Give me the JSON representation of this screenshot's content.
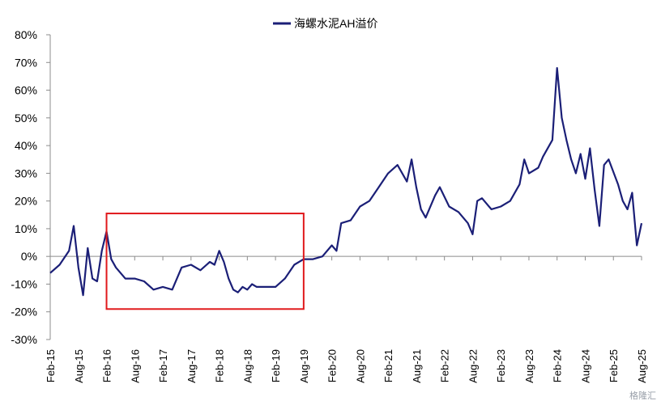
{
  "chart_data": {
    "type": "line",
    "title": "",
    "xlabel": "",
    "ylabel": "",
    "legend": {
      "position": "top-center"
    },
    "ylim": [
      -30,
      80
    ],
    "y_ticks": [
      -30,
      -20,
      -10,
      0,
      10,
      20,
      30,
      40,
      50,
      60,
      70,
      80
    ],
    "y_tick_labels": [
      "-30%",
      "-20%",
      "-10%",
      "0%",
      "10%",
      "20%",
      "30%",
      "40%",
      "50%",
      "60%",
      "70%",
      "80%"
    ],
    "x_ticks": [
      "Feb-15",
      "Aug-15",
      "Feb-16",
      "Aug-16",
      "Feb-17",
      "Aug-17",
      "Feb-18",
      "Aug-18",
      "Feb-19",
      "Aug-19",
      "Feb-20",
      "Aug-20",
      "Feb-21",
      "Aug-21",
      "Feb-22",
      "Aug-22",
      "Feb-23",
      "Aug-23",
      "Feb-24",
      "Aug-24",
      "Feb-25",
      "Aug-25"
    ],
    "grid": false,
    "series": [
      {
        "name": "海螺水泥AH溢价",
        "color": "#1b1f77",
        "x": [
          "2015-02",
          "2015-04",
          "2015-06",
          "2015-07",
          "2015-08",
          "2015-09",
          "2015-10",
          "2015-11",
          "2015-12",
          "2016-01",
          "2016-02",
          "2016-03",
          "2016-04",
          "2016-06",
          "2016-08",
          "2016-10",
          "2016-12",
          "2017-02",
          "2017-04",
          "2017-06",
          "2017-08",
          "2017-10",
          "2017-12",
          "2018-01",
          "2018-02",
          "2018-03",
          "2018-04",
          "2018-05",
          "2018-06",
          "2018-07",
          "2018-08",
          "2018-09",
          "2018-10",
          "2018-12",
          "2019-02",
          "2019-04",
          "2019-06",
          "2019-08",
          "2019-10",
          "2019-12",
          "2020-02",
          "2020-03",
          "2020-04",
          "2020-06",
          "2020-08",
          "2020-10",
          "2020-12",
          "2021-02",
          "2021-04",
          "2021-06",
          "2021-07",
          "2021-08",
          "2021-09",
          "2021-10",
          "2021-12",
          "2022-01",
          "2022-03",
          "2022-05",
          "2022-07",
          "2022-08",
          "2022-09",
          "2022-10",
          "2022-11",
          "2022-12",
          "2023-02",
          "2023-04",
          "2023-06",
          "2023-07",
          "2023-08",
          "2023-10",
          "2023-11",
          "2024-01",
          "2024-02",
          "2024-03",
          "2024-04",
          "2024-05",
          "2024-06",
          "2024-07",
          "2024-08",
          "2024-09",
          "2024-10",
          "2024-11",
          "2024-12",
          "2025-01",
          "2025-03",
          "2025-04",
          "2025-05",
          "2025-06",
          "2025-07",
          "2025-08"
        ],
        "values": [
          -6,
          -3,
          2,
          11,
          -4,
          -14,
          3,
          -8,
          -9,
          2,
          9,
          -1,
          -4,
          -8,
          -8,
          -9,
          -12,
          -11,
          -12,
          -4,
          -3,
          -5,
          -2,
          -3,
          2,
          -2,
          -8,
          -12,
          -13,
          -11,
          -12,
          -10,
          -11,
          -11,
          -11,
          -8,
          -3,
          -1,
          -1,
          0,
          4,
          2,
          12,
          13,
          18,
          20,
          25,
          30,
          33,
          27,
          35,
          25,
          17,
          14,
          22,
          25,
          18,
          16,
          12,
          8,
          20,
          21,
          19,
          17,
          18,
          20,
          26,
          35,
          30,
          32,
          36,
          42,
          68,
          50,
          42,
          35,
          30,
          37,
          28,
          39,
          24,
          11,
          33,
          35,
          26,
          20,
          17,
          23,
          4,
          12
        ]
      }
    ],
    "annotations": [
      {
        "type": "rectangle",
        "x_start": "2016-02",
        "x_end": "2019-08",
        "y_top": 15.5,
        "y_bottom": -19,
        "color": "#e0181b"
      }
    ]
  }
}
